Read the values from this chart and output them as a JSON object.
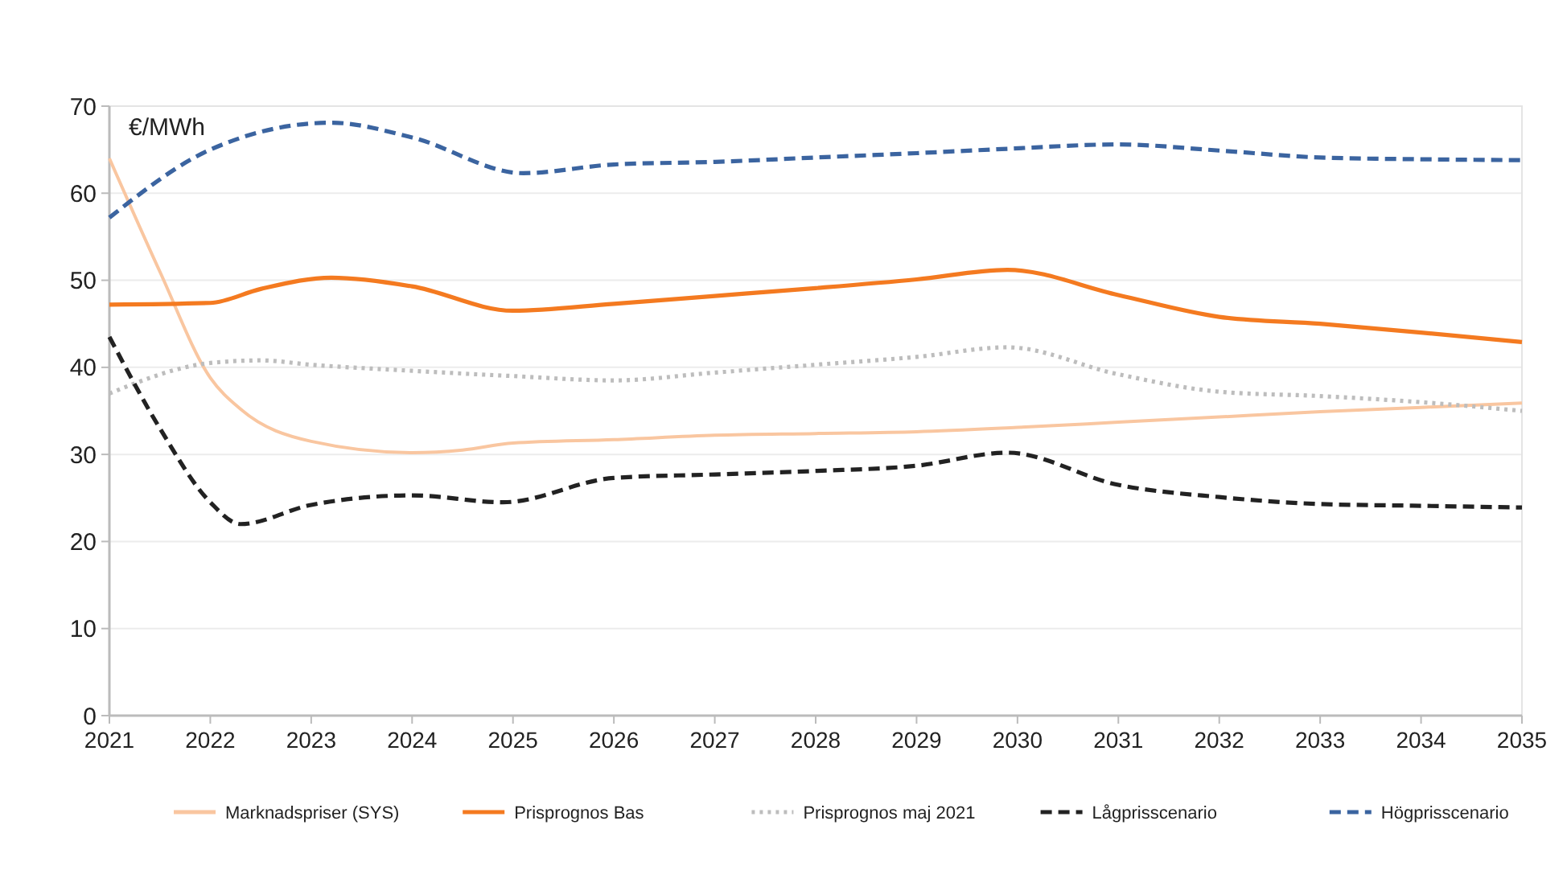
{
  "chart_data": {
    "type": "line",
    "ylabel": "€/MWh",
    "xlim": [
      2021,
      2035
    ],
    "xticks": [
      2021,
      2022,
      2023,
      2024,
      2025,
      2026,
      2027,
      2028,
      2029,
      2030,
      2031,
      2032,
      2033,
      2034,
      2035
    ],
    "ylim": [
      0,
      70
    ],
    "yticks": [
      0,
      10,
      20,
      30,
      40,
      50,
      60,
      70
    ],
    "grid": "y",
    "legend": "bottom",
    "series": [
      {
        "name": "Marknadspriser (SYS)",
        "color": "#f9c6a0",
        "line_style": "solid",
        "x": [
          2021,
          2021.5,
          2022,
          2022.3,
          2023,
          2024,
          2024.5,
          2025,
          2026,
          2027,
          2028,
          2029,
          2030,
          2031,
          2032,
          2033,
          2034,
          2035
        ],
        "values": [
          64,
          51,
          38.8,
          35.2,
          31.5,
          30.2,
          30.5,
          31.3,
          31.7,
          32.2,
          32.4,
          32.6,
          33.1,
          33.7,
          34.3,
          34.9,
          35.4,
          35.9
        ]
      },
      {
        "name": "Prisprognos Bas",
        "color": "#f47a20",
        "line_style": "solid",
        "x": [
          2021,
          2022,
          2022.5,
          2023.2,
          2024,
          2025,
          2026,
          2027,
          2028,
          2029,
          2029.9,
          2031,
          2032,
          2033,
          2034,
          2035
        ],
        "values": [
          47.2,
          47.4,
          49,
          50.3,
          49.3,
          46.5,
          47.3,
          48.2,
          49.1,
          50.1,
          51.2,
          48.3,
          45.8,
          45,
          44,
          42.9
        ]
      },
      {
        "name": "Prisprognos maj 2021",
        "color": "#bdbdbd",
        "line_style": "dotted",
        "x": [
          2021,
          2022,
          2022.5,
          2023,
          2024,
          2025,
          2026,
          2027,
          2028,
          2029,
          2029.9,
          2031,
          2032,
          2033,
          2034,
          2035
        ],
        "values": [
          37,
          40.5,
          40.8,
          40.3,
          39.6,
          39,
          38.5,
          39.4,
          40.3,
          41.2,
          42.3,
          39.2,
          37.2,
          36.7,
          36,
          35
        ]
      },
      {
        "name": "Lågprisscenario",
        "color": "#222222",
        "line_style": "dashed",
        "x": [
          2021,
          2021.5,
          2022,
          2022.3,
          2023,
          2024,
          2024.9,
          2026,
          2027,
          2028,
          2029,
          2029.9,
          2031,
          2032,
          2033,
          2034,
          2035
        ],
        "values": [
          43.5,
          33,
          24.5,
          22,
          24.2,
          25.3,
          24.5,
          27.3,
          27.7,
          28.1,
          28.7,
          30.2,
          26.5,
          25.1,
          24.3,
          24.1,
          23.9
        ]
      },
      {
        "name": "Högprisscenario",
        "color": "#3b64a0",
        "line_style": "dashed",
        "x": [
          2021,
          2022,
          2023.2,
          2024,
          2025.1,
          2026,
          2027,
          2028,
          2029,
          2029.9,
          2031,
          2032,
          2033,
          2034,
          2035
        ],
        "values": [
          57.2,
          65,
          68.1,
          66.4,
          62.3,
          63.3,
          63.6,
          64.1,
          64.6,
          65.1,
          65.6,
          64.9,
          64.1,
          63.9,
          63.8
        ]
      }
    ]
  }
}
